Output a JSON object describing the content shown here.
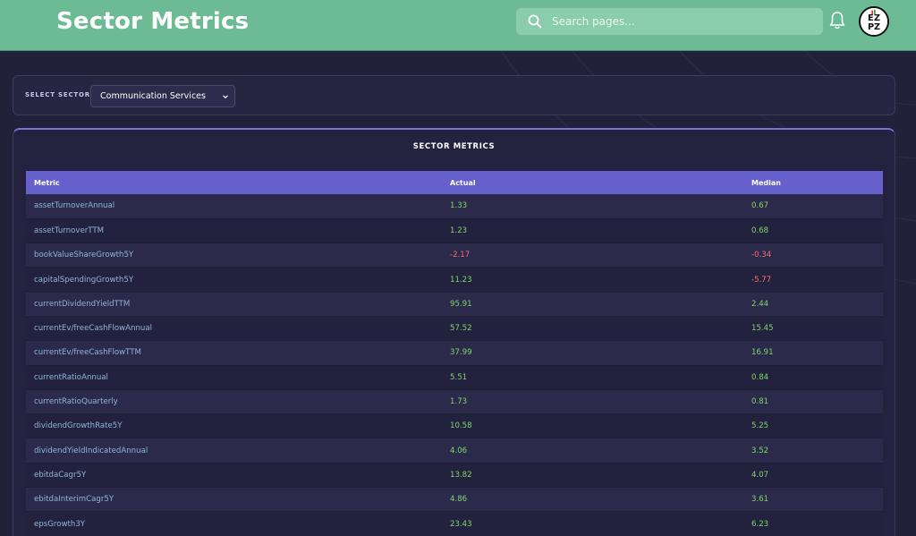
{
  "header": {
    "title": "Sector Metrics",
    "search_placeholder": "Search pages...",
    "avatar_text": "EZPZ"
  },
  "selector": {
    "label": "SELECT SECTOR",
    "selected": "Communication Services"
  },
  "panel": {
    "title": "SECTOR METRICS",
    "columns": [
      "Metric",
      "Actual",
      "Median"
    ],
    "rows": [
      {
        "metric": "assetTurnoverAnnual",
        "actual": "1.33",
        "median": "0.67"
      },
      {
        "metric": "assetTurnoverTTM",
        "actual": "1.23",
        "median": "0.68"
      },
      {
        "metric": "bookValueShareGrowth5Y",
        "actual": "-2.17",
        "median": "-0.34"
      },
      {
        "metric": "capitalSpendingGrowth5Y",
        "actual": "11.23",
        "median": "-5.77"
      },
      {
        "metric": "currentDividendYieldTTM",
        "actual": "95.91",
        "median": "2.44"
      },
      {
        "metric": "currentEv/freeCashFlowAnnual",
        "actual": "57.52",
        "median": "15.45"
      },
      {
        "metric": "currentEv/freeCashFlowTTM",
        "actual": "37.99",
        "median": "16.91"
      },
      {
        "metric": "currentRatioAnnual",
        "actual": "5.51",
        "median": "0.84"
      },
      {
        "metric": "currentRatioQuarterly",
        "actual": "1.73",
        "median": "0.81"
      },
      {
        "metric": "dividendGrowthRate5Y",
        "actual": "10.58",
        "median": "5.25"
      },
      {
        "metric": "dividendYieldIndicatedAnnual",
        "actual": "4.06",
        "median": "3.52"
      },
      {
        "metric": "ebitdaCagr5Y",
        "actual": "13.82",
        "median": "4.07"
      },
      {
        "metric": "ebitdaInterimCagr5Y",
        "actual": "4.86",
        "median": "3.61"
      },
      {
        "metric": "epsGrowth3Y",
        "actual": "23.43",
        "median": "6.23"
      }
    ]
  },
  "colors": {
    "header_bg": "#6dbb94",
    "page_bg": "#22213a",
    "table_header_bg": "#6660cc",
    "positive": "#7fd66b",
    "negative": "#ff6b6b",
    "metric_text": "#8fb6d8"
  }
}
